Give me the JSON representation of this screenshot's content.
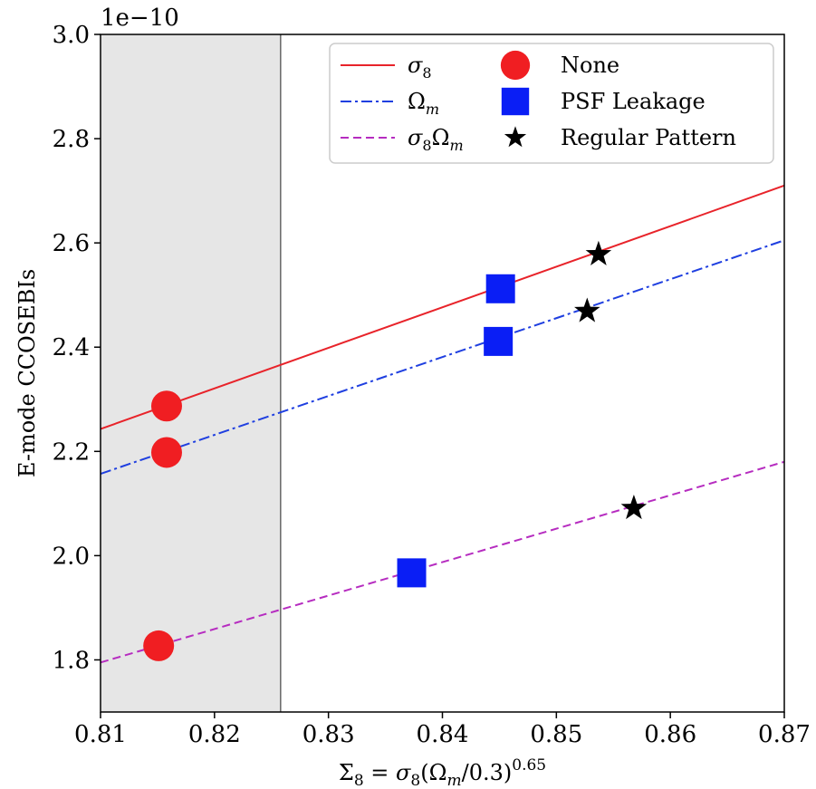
{
  "chart_data": {
    "type": "scatter",
    "xlabel": "Σ8 = σ8(Ωm/0.3)^0.65",
    "ylabel": "E-mode CCOSEBIs",
    "offset_text": "1e−10",
    "xlim": [
      0.81,
      0.87
    ],
    "ylim": [
      1.7,
      3.0
    ],
    "xticks": [
      0.81,
      0.82,
      0.83,
      0.84,
      0.85,
      0.86,
      0.87
    ],
    "xtick_labels": [
      "0.81",
      "0.82",
      "0.83",
      "0.84",
      "0.85",
      "0.86",
      "0.87"
    ],
    "yticks": [
      1.8,
      2.0,
      2.2,
      2.4,
      2.6,
      2.8,
      3.0
    ],
    "ytick_labels": [
      "1.8",
      "2.0",
      "2.2",
      "2.4",
      "2.6",
      "2.8",
      "3.0"
    ],
    "shaded_region": {
      "x": [
        0.81,
        0.8258
      ],
      "color": "#e6e6e6"
    },
    "lines": [
      {
        "name": "σ8",
        "style": "solid",
        "color": "#e8232a",
        "x": [
          0.81,
          0.87
        ],
        "y": [
          2.243,
          2.71
        ]
      },
      {
        "name": "Ωm",
        "style": "dashdot",
        "color": "#1f3fe0",
        "x": [
          0.81,
          0.87
        ],
        "y": [
          2.157,
          2.605
        ]
      },
      {
        "name": "σ8Ωm",
        "style": "dashed",
        "color": "#b62cc0",
        "x": [
          0.81,
          0.87
        ],
        "y": [
          1.795,
          2.18
        ]
      }
    ],
    "markers": [
      {
        "name": "None",
        "shape": "circle",
        "color": "#f01e22",
        "points": [
          [
            0.8158,
            2.287
          ],
          [
            0.8158,
            2.198
          ],
          [
            0.8151,
            1.827
          ]
        ]
      },
      {
        "name": "PSF Leakage",
        "shape": "square",
        "color": "#0a1ef5",
        "points": [
          [
            0.8451,
            2.512
          ],
          [
            0.8449,
            2.411
          ],
          [
            0.8373,
            1.967
          ]
        ]
      },
      {
        "name": "Regular Pattern",
        "shape": "star",
        "color": "#000000",
        "points": [
          [
            0.8537,
            2.578
          ],
          [
            0.8527,
            2.469
          ],
          [
            0.8568,
            2.091
          ]
        ]
      }
    ],
    "legend": {
      "position": "top-right",
      "line_entries": [
        {
          "label_base": "σ",
          "label_sub": "8",
          "label_tail": ""
        },
        {
          "label_base": "Ω",
          "label_sub": "m",
          "label_tail": ""
        },
        {
          "label_base": "σ",
          "label_sub": "8",
          "label_tail": "Ω",
          "label_tail_sub": "m"
        }
      ],
      "marker_entries": [
        "None",
        "PSF Leakage",
        "Regular Pattern"
      ]
    },
    "grid": false
  }
}
